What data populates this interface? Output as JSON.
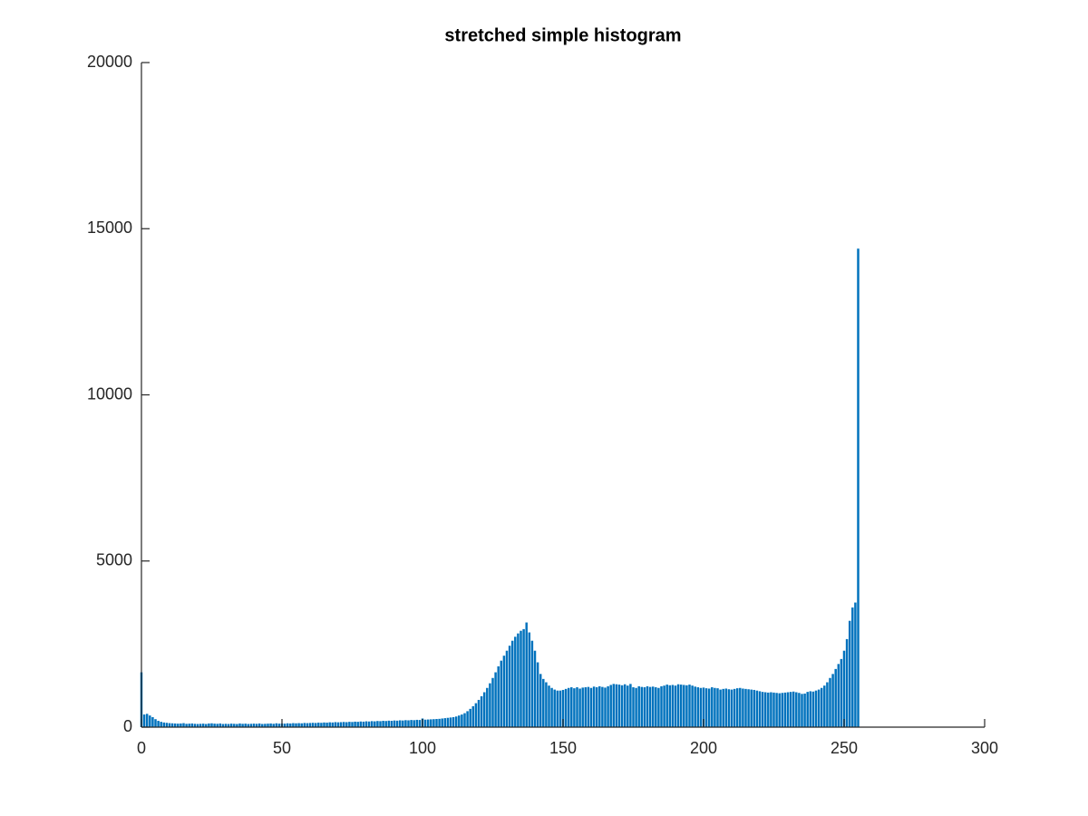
{
  "chart_data": {
    "type": "bar",
    "title": "stretched simple histogram",
    "color": "#0072bd",
    "x": [
      0,
      1,
      2,
      3,
      4,
      5,
      6,
      7,
      8,
      9,
      10,
      11,
      12,
      13,
      14,
      15,
      16,
      17,
      18,
      19,
      20,
      21,
      22,
      23,
      24,
      25,
      26,
      27,
      28,
      29,
      30,
      31,
      32,
      33,
      34,
      35,
      36,
      37,
      38,
      39,
      40,
      41,
      42,
      43,
      44,
      45,
      46,
      47,
      48,
      49,
      50,
      51,
      52,
      53,
      54,
      55,
      56,
      57,
      58,
      59,
      60,
      61,
      62,
      63,
      64,
      65,
      66,
      67,
      68,
      69,
      70,
      71,
      72,
      73,
      74,
      75,
      76,
      77,
      78,
      79,
      80,
      81,
      82,
      83,
      84,
      85,
      86,
      87,
      88,
      89,
      90,
      91,
      92,
      93,
      94,
      95,
      96,
      97,
      98,
      99,
      100,
      101,
      102,
      103,
      104,
      105,
      106,
      107,
      108,
      109,
      110,
      111,
      112,
      113,
      114,
      115,
      116,
      117,
      118,
      119,
      120,
      121,
      122,
      123,
      124,
      125,
      126,
      127,
      128,
      129,
      130,
      131,
      132,
      133,
      134,
      135,
      136,
      137,
      138,
      139,
      140,
      141,
      142,
      143,
      144,
      145,
      146,
      147,
      148,
      149,
      150,
      151,
      152,
      153,
      154,
      155,
      156,
      157,
      158,
      159,
      160,
      161,
      162,
      163,
      164,
      165,
      166,
      167,
      168,
      169,
      170,
      171,
      172,
      173,
      174,
      175,
      176,
      177,
      178,
      179,
      180,
      181,
      182,
      183,
      184,
      185,
      186,
      187,
      188,
      189,
      190,
      191,
      192,
      193,
      194,
      195,
      196,
      197,
      198,
      199,
      200,
      201,
      202,
      203,
      204,
      205,
      206,
      207,
      208,
      209,
      210,
      211,
      212,
      213,
      214,
      215,
      216,
      217,
      218,
      219,
      220,
      221,
      222,
      223,
      224,
      225,
      226,
      227,
      228,
      229,
      230,
      231,
      232,
      233,
      234,
      235,
      236,
      237,
      238,
      239,
      240,
      241,
      242,
      243,
      244,
      245,
      246,
      247,
      248,
      249,
      250,
      251,
      252,
      253,
      254,
      255
    ],
    "values": [
      1650,
      380,
      400,
      350,
      300,
      240,
      190,
      160,
      140,
      130,
      120,
      115,
      110,
      105,
      110,
      120,
      100,
      105,
      110,
      100,
      95,
      100,
      105,
      95,
      110,
      115,
      105,
      100,
      110,
      95,
      100,
      95,
      105,
      100,
      95,
      110,
      100,
      105,
      95,
      100,
      105,
      100,
      110,
      95,
      100,
      105,
      110,
      100,
      115,
      105,
      110,
      105,
      115,
      110,
      120,
      115,
      120,
      115,
      125,
      120,
      125,
      130,
      125,
      135,
      130,
      140,
      135,
      145,
      140,
      150,
      145,
      150,
      155,
      150,
      160,
      155,
      165,
      160,
      170,
      165,
      175,
      170,
      180,
      175,
      185,
      180,
      190,
      185,
      195,
      190,
      200,
      195,
      205,
      200,
      210,
      205,
      215,
      210,
      220,
      215,
      260,
      225,
      230,
      235,
      240,
      245,
      250,
      260,
      270,
      280,
      290,
      300,
      320,
      350,
      380,
      420,
      480,
      550,
      630,
      720,
      820,
      930,
      1050,
      1180,
      1320,
      1480,
      1650,
      1830,
      2000,
      2150,
      2300,
      2450,
      2600,
      2720,
      2820,
      2900,
      2950,
      3150,
      2850,
      2600,
      2300,
      1950,
      1600,
      1450,
      1350,
      1250,
      1180,
      1130,
      1100,
      1100,
      1120,
      1150,
      1180,
      1200,
      1170,
      1200,
      1160,
      1190,
      1200,
      1210,
      1180,
      1220,
      1200,
      1230,
      1210,
      1190,
      1230,
      1270,
      1300,
      1290,
      1280,
      1260,
      1290,
      1250,
      1300,
      1200,
      1180,
      1230,
      1210,
      1200,
      1230,
      1210,
      1220,
      1200,
      1180,
      1230,
      1250,
      1280,
      1260,
      1270,
      1250,
      1290,
      1280,
      1270,
      1260,
      1280,
      1250,
      1220,
      1200,
      1180,
      1190,
      1170,
      1160,
      1200,
      1180,
      1170,
      1130,
      1150,
      1160,
      1140,
      1130,
      1150,
      1170,
      1180,
      1160,
      1150,
      1140,
      1130,
      1120,
      1100,
      1080,
      1060,
      1050,
      1040,
      1050,
      1040,
      1030,
      1020,
      1030,
      1040,
      1050,
      1060,
      1070,
      1050,
      1030,
      1000,
      1010,
      1060,
      1080,
      1070,
      1100,
      1130,
      1180,
      1250,
      1350,
      1480,
      1600,
      1750,
      1900,
      2050,
      2300,
      2650,
      3200,
      3600,
      3750,
      14400
    ],
    "xlim": [
      0,
      300
    ],
    "xticks": [
      0,
      50,
      100,
      150,
      200,
      250,
      300
    ],
    "ylim": [
      0,
      20000
    ],
    "yticks": [
      0,
      5000,
      10000,
      15000,
      20000
    ]
  }
}
